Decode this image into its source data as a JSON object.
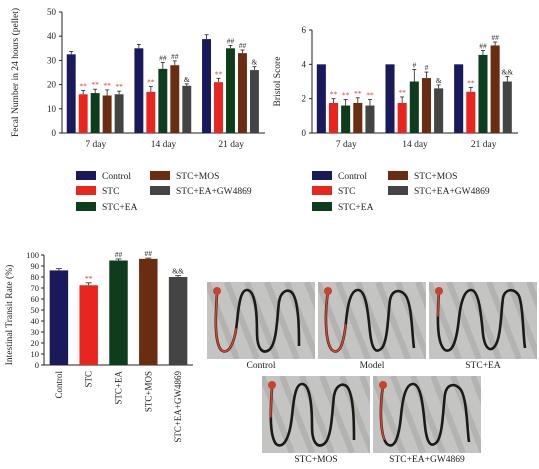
{
  "colors": {
    "control": "#19195c",
    "stc": "#e8251f",
    "stc_ea": "#0d3d1c",
    "stc_mos": "#6b2d12",
    "stc_ea_gw": "#444444"
  },
  "chart_data": [
    {
      "type": "bar",
      "ylabel": "Fecal Number in 24 hours (pellet)",
      "ylim": [
        0,
        50
      ],
      "yticks": [
        0,
        10,
        20,
        30,
        40,
        50
      ],
      "categories": [
        "7 day",
        "14 day",
        "21 day"
      ],
      "series": [
        {
          "name": "Control",
          "values": [
            32.5,
            35,
            38.8
          ],
          "errors": [
            1.2,
            1.6,
            1.8
          ],
          "labels": [
            "",
            "",
            ""
          ]
        },
        {
          "name": "STC",
          "values": [
            16,
            17,
            21
          ],
          "errors": [
            1.6,
            2.2,
            1.6
          ],
          "labels": [
            "**",
            "**",
            "**"
          ]
        },
        {
          "name": "STC+EA",
          "values": [
            16.5,
            26.5,
            35
          ],
          "errors": [
            1.6,
            2.6,
            1.2
          ],
          "labels": [
            "**",
            "##",
            "##"
          ]
        },
        {
          "name": "STC+MOS",
          "values": [
            15.5,
            28,
            33
          ],
          "errors": [
            2.3,
            1.8,
            1.3
          ],
          "labels": [
            "**",
            "##",
            "##"
          ]
        },
        {
          "name": "STC+EA+GW4869",
          "values": [
            16,
            19.5,
            26
          ],
          "errors": [
            1.3,
            0.8,
            1.4
          ],
          "labels": [
            "**",
            "&",
            "&"
          ]
        }
      ]
    },
    {
      "type": "bar",
      "ylabel": "Bristol Score",
      "ylim": [
        0,
        6
      ],
      "yticks": [
        0,
        2,
        4,
        6
      ],
      "categories": [
        "7 day",
        "14 day",
        "21 day"
      ],
      "series": [
        {
          "name": "Control",
          "values": [
            4,
            4,
            4
          ],
          "errors": [
            0,
            0,
            0
          ],
          "labels": [
            "",
            "",
            ""
          ]
        },
        {
          "name": "STC",
          "values": [
            1.75,
            1.75,
            2.4
          ],
          "errors": [
            0.25,
            0.35,
            0.25
          ],
          "labels": [
            "**",
            "**",
            "**"
          ]
        },
        {
          "name": "STC+EA",
          "values": [
            1.6,
            3,
            4.55
          ],
          "errors": [
            0.35,
            0.7,
            0.25
          ],
          "labels": [
            "**",
            "#",
            "##"
          ]
        },
        {
          "name": "STC+MOS",
          "values": [
            1.75,
            3.2,
            5.1
          ],
          "errors": [
            0.3,
            0.35,
            0.2
          ],
          "labels": [
            "**",
            "#",
            "##"
          ]
        },
        {
          "name": "STC+EA+GW4869",
          "values": [
            1.6,
            2.6,
            3
          ],
          "errors": [
            0.35,
            0.2,
            0.3
          ],
          "labels": [
            "**",
            "&",
            "&&"
          ]
        }
      ]
    },
    {
      "type": "bar",
      "ylabel": "Intestinal Transit Rate (%)",
      "ylim": [
        0,
        100
      ],
      "yticks": [
        0,
        10,
        20,
        30,
        40,
        50,
        60,
        70,
        80,
        90,
        100
      ],
      "categories": [
        "Control",
        "STC",
        "STC+EA",
        "STC+MOS",
        "STC+EA+GW4869"
      ],
      "values": [
        86,
        72.5,
        95,
        96.5,
        80
      ],
      "errors": [
        1.6,
        2.2,
        1.4,
        0.7,
        1.2
      ],
      "labels": [
        "",
        "**",
        "##",
        "##",
        "&&"
      ]
    }
  ],
  "legend": [
    {
      "label": "Control",
      "color_key": "control"
    },
    {
      "label": "STC+MOS",
      "color_key": "stc_mos"
    },
    {
      "label": "STC",
      "color_key": "stc"
    },
    {
      "label": "STC+EA+GW4869",
      "color_key": "stc_ea_gw"
    },
    {
      "label": "STC+EA",
      "color_key": "stc_ea"
    }
  ],
  "photos": [
    {
      "caption": "Control",
      "red": 0.9
    },
    {
      "caption": "Model",
      "red": 0.95
    },
    {
      "caption": "STC+EA",
      "red": 0.25
    },
    {
      "caption": "STC+MOS",
      "red": 0.3
    },
    {
      "caption": "STC+EA+GW4869",
      "red": 0.55
    }
  ]
}
